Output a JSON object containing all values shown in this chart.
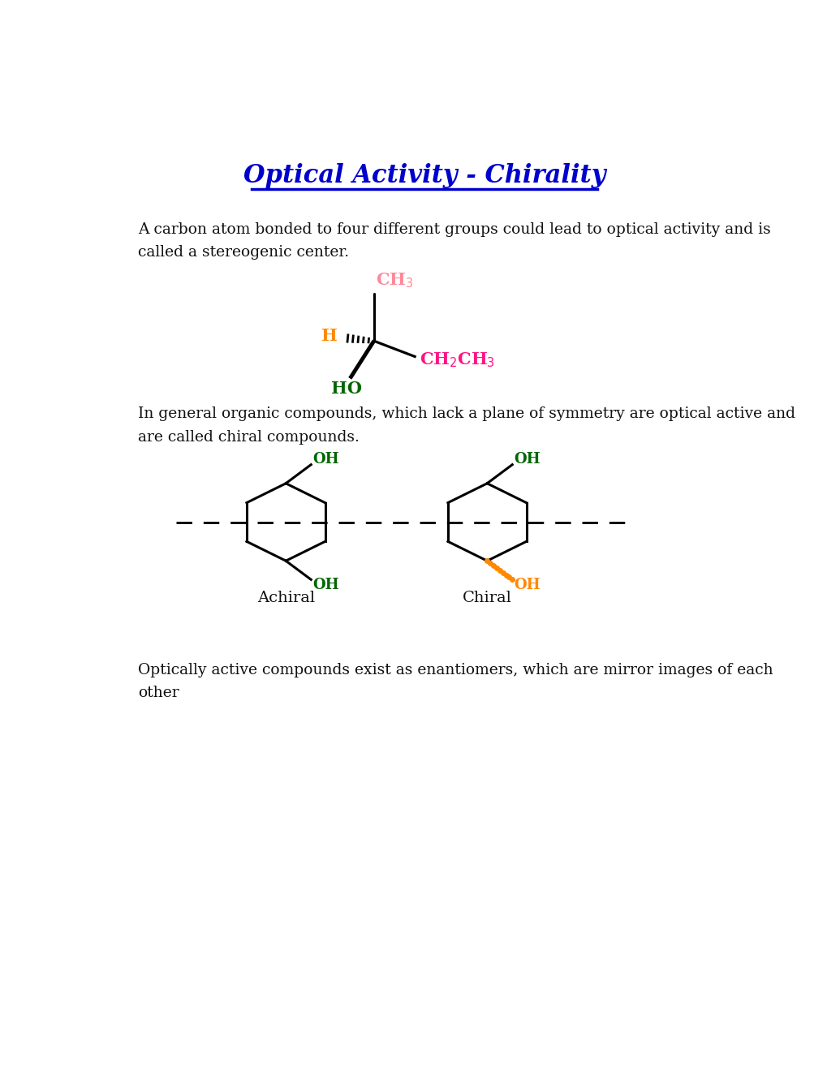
{
  "title": "Optical Activity - Chirality",
  "title_color": "#0000CC",
  "bg_color": "#FFFFFF",
  "para1": "A carbon atom bonded to four different groups could lead to optical activity and is\ncalled a stereogenic center.",
  "para2": "In general organic compounds, which lack a plane of symmetry are optical active and\nare called chiral compounds.",
  "para3": "Optically active compounds exist as enantiomers, which are mirror images of each\nother",
  "text_color": "#111111",
  "pink_color": "#FF8899",
  "orange_color": "#FF8800",
  "green_color": "#006600",
  "magenta_color": "#FF1483",
  "black_color": "#000000",
  "font_size_body": 13.5,
  "font_size_title": 22,
  "font_size_chem": 14,
  "font_size_label": 14
}
